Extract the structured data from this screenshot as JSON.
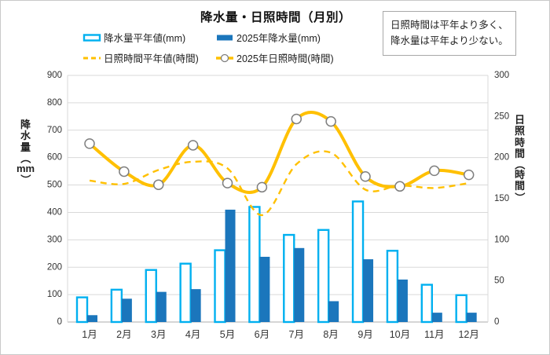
{
  "title": "降水量・日照時間（月別）",
  "annotation": {
    "line1": "日照時間は平年より多く、",
    "line2": "降水量は平年より少ない。"
  },
  "legend": {
    "items": [
      {
        "label": "降水量平年値(mm)",
        "swatch": "bar-outline"
      },
      {
        "label": "2025年降水量(mm)",
        "swatch": "bar-solid"
      },
      {
        "label": "日照時間平年値(時間)",
        "swatch": "line-dashed"
      },
      {
        "label": "2025年日照時間(時間)",
        "swatch": "line-marker"
      }
    ]
  },
  "chart_data": {
    "type": "bar+line combo",
    "categories": [
      "1月",
      "2月",
      "3月",
      "4月",
      "5月",
      "6月",
      "7月",
      "8月",
      "9月",
      "10月",
      "11月",
      "12月"
    ],
    "series": [
      {
        "name": "降水量平年値(mm)",
        "type": "bar",
        "style": "outline",
        "axis": "left",
        "values": [
          90,
          118,
          190,
          213,
          262,
          420,
          318,
          336,
          440,
          260,
          136,
          98
        ]
      },
      {
        "name": "2025年降水量(mm)",
        "type": "bar",
        "style": "solid",
        "axis": "left",
        "values": [
          25,
          85,
          110,
          120,
          410,
          238,
          270,
          76,
          229,
          155,
          34,
          34
        ]
      },
      {
        "name": "日照時間平年値(時間)",
        "type": "line",
        "style": "dashed-smooth",
        "axis": "right",
        "values": [
          172,
          168,
          185,
          195,
          187,
          130,
          192,
          206,
          161,
          166,
          163,
          169
        ]
      },
      {
        "name": "2025年日照時間(時間)",
        "type": "line",
        "style": "solid-marker",
        "axis": "right",
        "values": [
          217,
          183,
          167,
          215,
          169,
          164,
          247,
          244,
          177,
          165,
          184,
          179
        ]
      }
    ],
    "axes": {
      "left": {
        "title": "降水量（mm）",
        "min": 0,
        "max": 900,
        "step": 100,
        "ticks": [
          0,
          100,
          200,
          300,
          400,
          500,
          600,
          700,
          800,
          900
        ]
      },
      "right": {
        "title": "日照時間（時間）",
        "min": 0,
        "max": 300,
        "step": 50,
        "ticks": [
          0,
          50,
          100,
          150,
          200,
          250,
          300
        ]
      }
    },
    "grid": true,
    "legend_position": "top",
    "colors": {
      "precip_normal": "#00B0F0",
      "precip_2025": "#1B76BC",
      "sunshine": "#FFC000",
      "marker_fill": "#FFFFFF",
      "marker_stroke": "#7F7F7F",
      "gridline": "#D9D9D9",
      "axis_line": "#ABABAB",
      "tick_text": "#333333"
    }
  }
}
